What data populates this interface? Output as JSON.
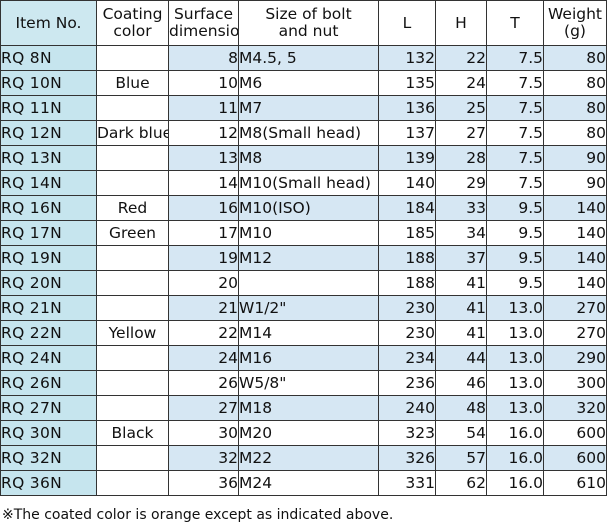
{
  "headers": {
    "item": "Item No.",
    "coating": [
      "Coating",
      "color"
    ],
    "surface": [
      "Surface",
      "dimensions"
    ],
    "size": [
      "Size of bolt",
      "and nut"
    ],
    "L": "L",
    "H": "H",
    "T": "T",
    "weight": [
      "Weight",
      "(g)"
    ]
  },
  "rows": [
    {
      "item": "RQ   8N",
      "coating": "",
      "surface": "8",
      "size": "M4.5, 5",
      "L": "132",
      "H": "22",
      "T": "7.5",
      "weight": "80",
      "tint": true
    },
    {
      "item": "RQ 10N",
      "coating": "Blue",
      "surface": "10",
      "size": "M6",
      "L": "135",
      "H": "24",
      "T": "7.5",
      "weight": "80",
      "tint": false
    },
    {
      "item": "RQ 11N",
      "coating": "",
      "surface": "11",
      "size": "M7",
      "L": "136",
      "H": "25",
      "T": "7.5",
      "weight": "80",
      "tint": true
    },
    {
      "item": "RQ 12N",
      "coating": "Dark blue",
      "surface": "12",
      "size": "M8(Small head)",
      "L": "137",
      "H": "27",
      "T": "7.5",
      "weight": "80",
      "tint": false
    },
    {
      "item": "RQ 13N",
      "coating": "",
      "surface": "13",
      "size": "M8",
      "L": "139",
      "H": "28",
      "T": "7.5",
      "weight": "90",
      "tint": true
    },
    {
      "item": "RQ 14N",
      "coating": "",
      "surface": "14",
      "size": "M10(Small head)",
      "L": "140",
      "H": "29",
      "T": "7.5",
      "weight": "90",
      "tint": false
    },
    {
      "item": "RQ 16N",
      "coating": "Red",
      "surface": "16",
      "size": "M10(ISO)",
      "L": "184",
      "H": "33",
      "T": "9.5",
      "weight": "140",
      "tint": true
    },
    {
      "item": "RQ 17N",
      "coating": "Green",
      "surface": "17",
      "size": "M10",
      "L": "185",
      "H": "34",
      "T": "9.5",
      "weight": "140",
      "tint": false
    },
    {
      "item": "RQ 19N",
      "coating": "",
      "surface": "19",
      "size": "M12",
      "L": "188",
      "H": "37",
      "T": "9.5",
      "weight": "140",
      "tint": true
    },
    {
      "item": "RQ 20N",
      "coating": "",
      "surface": "20",
      "size": "",
      "L": "188",
      "H": "41",
      "T": "9.5",
      "weight": "140",
      "tint": false
    },
    {
      "item": "RQ 21N",
      "coating": "",
      "surface": "21",
      "size": "W1/2\"",
      "L": "230",
      "H": "41",
      "T": "13.0",
      "weight": "270",
      "tint": true
    },
    {
      "item": "RQ 22N",
      "coating": "Yellow",
      "surface": "22",
      "size": "M14",
      "L": "230",
      "H": "41",
      "T": "13.0",
      "weight": "270",
      "tint": false
    },
    {
      "item": "RQ 24N",
      "coating": "",
      "surface": "24",
      "size": "M16",
      "L": "234",
      "H": "44",
      "T": "13.0",
      "weight": "290",
      "tint": true
    },
    {
      "item": "RQ 26N",
      "coating": "",
      "surface": "26",
      "size": "W5/8\"",
      "L": "236",
      "H": "46",
      "T": "13.0",
      "weight": "300",
      "tint": false
    },
    {
      "item": "RQ 27N",
      "coating": "",
      "surface": "27",
      "size": "M18",
      "L": "240",
      "H": "48",
      "T": "13.0",
      "weight": "320",
      "tint": true
    },
    {
      "item": "RQ 30N",
      "coating": "Black",
      "surface": "30",
      "size": "M20",
      "L": "323",
      "H": "54",
      "T": "16.0",
      "weight": "600",
      "tint": false
    },
    {
      "item": "RQ 32N",
      "coating": "",
      "surface": "32",
      "size": "M22",
      "L": "326",
      "H": "57",
      "T": "16.0",
      "weight": "600",
      "tint": true
    },
    {
      "item": "RQ 36N",
      "coating": "",
      "surface": "36",
      "size": "M24",
      "L": "331",
      "H": "62",
      "T": "16.0",
      "weight": "610",
      "tint": false
    }
  ],
  "footnote": "※The coated color is orange except as indicated above.",
  "colors": {
    "item_column": "#c6e5ee",
    "row_tint": "#d6e7f3",
    "border": "#333333"
  }
}
